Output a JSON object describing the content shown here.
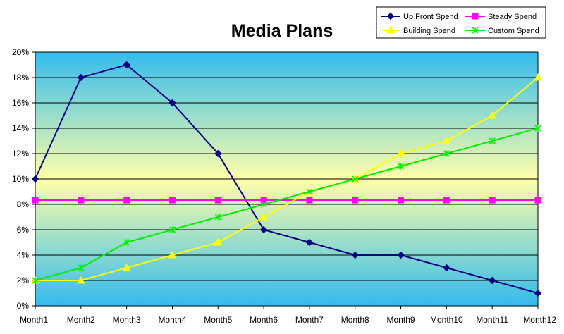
{
  "chart_data": {
    "type": "line",
    "title": "Media Plans",
    "xlabel": "",
    "ylabel": "",
    "categories": [
      "Month1",
      "Month2",
      "Month3",
      "Month4",
      "Month5",
      "Month6",
      "Month7",
      "Month8",
      "Month9",
      "Month10",
      "Month11",
      "Month12"
    ],
    "ylim": [
      0,
      20
    ],
    "y_ticks": [
      "0%",
      "2%",
      "4%",
      "6%",
      "8%",
      "10%",
      "12%",
      "14%",
      "16%",
      "18%",
      "20%"
    ],
    "y_tick_values": [
      0,
      2,
      4,
      6,
      8,
      10,
      12,
      14,
      16,
      18,
      20
    ],
    "grid": true,
    "legend_position": "top-right",
    "background_gradient": [
      "#33bbee",
      "#ffffa8",
      "#33bbee"
    ],
    "series": [
      {
        "name": "Up Front Spend",
        "color": "#000080",
        "marker": "diamond",
        "values": [
          10,
          18,
          19,
          16,
          12,
          6,
          5,
          4,
          4,
          3,
          2,
          1
        ]
      },
      {
        "name": "Steady Spend",
        "color": "#ff00ff",
        "marker": "square",
        "values": [
          8.33,
          8.33,
          8.33,
          8.33,
          8.33,
          8.33,
          8.33,
          8.33,
          8.33,
          8.33,
          8.33,
          8.33
        ]
      },
      {
        "name": "Building Spend",
        "color": "#ffff00",
        "marker": "triangle",
        "values": [
          2,
          2,
          3,
          4,
          5,
          7,
          9,
          10,
          12,
          13,
          15,
          18
        ]
      },
      {
        "name": "Custom Spend",
        "color": "#00ee00",
        "marker": "x",
        "values": [
          2,
          3,
          5,
          6,
          7,
          8,
          9,
          10,
          11,
          12,
          13,
          14
        ]
      }
    ]
  }
}
